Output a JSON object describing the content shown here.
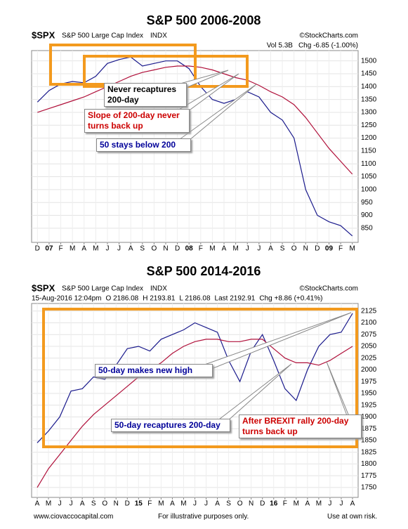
{
  "chart_data": [
    {
      "type": "line",
      "title": "S&P 500 2006-2008",
      "symbol": "$SPX",
      "name": "S&P 500 Large Cap Index",
      "exchange": "INDX",
      "source": "©StockCharts.com",
      "quote": [
        "Vol 5.3B",
        "Chg -6.85 (-1.00%)"
      ],
      "categories": [
        "D",
        "07",
        "F",
        "M",
        "A",
        "M",
        "J",
        "J",
        "A",
        "S",
        "O",
        "N",
        "D",
        "08",
        "F",
        "M",
        "A",
        "M",
        "J",
        "J",
        "A",
        "S",
        "O",
        "N",
        "D",
        "09",
        "F",
        "M"
      ],
      "series": [
        {
          "name": "50-day",
          "color": "#1a1a8c",
          "values": [
            1340,
            1385,
            1410,
            1420,
            1415,
            1440,
            1490,
            1505,
            1515,
            1480,
            1490,
            1500,
            1500,
            1470,
            1400,
            1350,
            1335,
            1350,
            1380,
            1360,
            1300,
            1270,
            1200,
            1000,
            900,
            875,
            860,
            820
          ]
        },
        {
          "name": "200-day",
          "color": "#b0103a",
          "values": [
            1300,
            1315,
            1330,
            1345,
            1360,
            1380,
            1400,
            1420,
            1440,
            1455,
            1465,
            1475,
            1480,
            1480,
            1475,
            1465,
            1450,
            1435,
            1425,
            1405,
            1380,
            1360,
            1330,
            1280,
            1220,
            1160,
            1110,
            1060
          ]
        }
      ],
      "ylim": [
        795,
        1540
      ],
      "yticks": [
        850,
        900,
        950,
        1000,
        1050,
        1100,
        1150,
        1200,
        1250,
        1300,
        1350,
        1400,
        1450,
        1500
      ],
      "grid": true,
      "annotations": [
        {
          "text": "Never recaptures 200-day",
          "color": "#000000"
        },
        {
          "text": "Slope of 200-day never turns back up",
          "color": "#cc0000"
        },
        {
          "text": "50 stays below 200",
          "color": "#000099"
        }
      ]
    },
    {
      "type": "line",
      "title": "S&P 500 2014-2016",
      "symbol": "$SPX",
      "name": "S&P 500 Large Cap Index",
      "exchange": "INDX",
      "source": "©StockCharts.com",
      "quote": [
        "15-Aug-2016 12:04pm",
        "O 2186.08",
        "H 2193.81",
        "L 2186.08",
        "Last 2192.91",
        "Chg +8.86 (+0.41%)"
      ],
      "categories": [
        "A",
        "M",
        "J",
        "J",
        "A",
        "S",
        "O",
        "N",
        "D",
        "15",
        "F",
        "M",
        "A",
        "M",
        "J",
        "J",
        "A",
        "S",
        "O",
        "N",
        "D",
        "16",
        "F",
        "M",
        "A",
        "M",
        "J",
        "J",
        "A"
      ],
      "series": [
        {
          "name": "50-day",
          "color": "#1a1a8c",
          "values": [
            1845,
            1870,
            1900,
            1955,
            1960,
            1985,
            1980,
            2010,
            2045,
            2050,
            2040,
            2065,
            2075,
            2085,
            2100,
            2090,
            2080,
            2020,
            1975,
            2040,
            2075,
            2020,
            1960,
            1935,
            2000,
            2050,
            2075,
            2080,
            2120
          ]
        },
        {
          "name": "200-day",
          "color": "#b0103a",
          "values": [
            1750,
            1790,
            1820,
            1850,
            1880,
            1905,
            1925,
            1945,
            1965,
            1985,
            2000,
            2015,
            2035,
            2050,
            2060,
            2065,
            2065,
            2060,
            2060,
            2065,
            2065,
            2045,
            2025,
            2015,
            2015,
            2010,
            2020,
            2035,
            2050
          ]
        }
      ],
      "ylim": [
        1729,
        2141
      ],
      "yticks": [
        1750,
        1775,
        1800,
        1825,
        1850,
        1875,
        1900,
        1925,
        1950,
        1975,
        2000,
        2025,
        2050,
        2075,
        2100,
        2125
      ],
      "grid": true,
      "annotations": [
        {
          "text": "50-day makes new high",
          "color": "#000099"
        },
        {
          "text": "50-day recaptures 200-day",
          "color": "#000099"
        },
        {
          "text": "After BREXIT rally 200-day turns back up",
          "color": "#cc0000"
        }
      ]
    }
  ],
  "footer": {
    "left": "www.ciovaccocapital.com",
    "center": "For illustrative purposes only.",
    "right": "Use at own risk."
  }
}
